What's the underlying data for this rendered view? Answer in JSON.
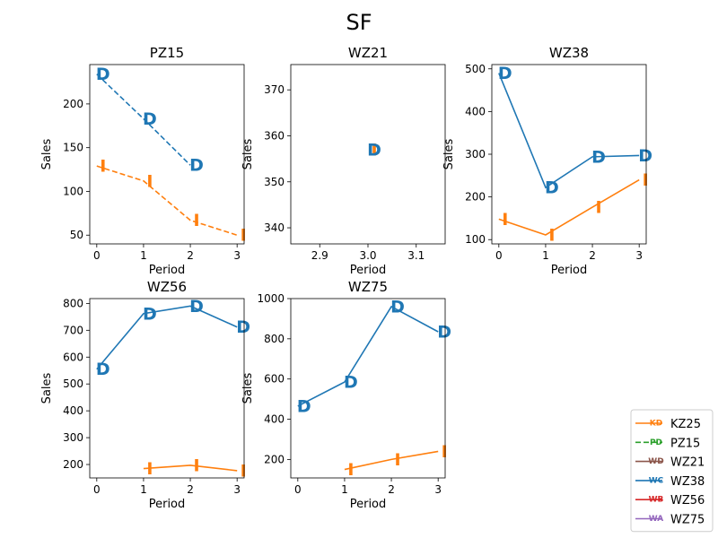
{
  "figure": {
    "title": "SF"
  },
  "colors": {
    "D": "#1f77b4",
    "I": "#ff7f0e"
  },
  "legend": {
    "placement": "bottom-right",
    "entries": [
      {
        "label": "KZ25",
        "color": "#ff7f0e",
        "dashed": false,
        "marker": "KD"
      },
      {
        "label": "PZ15",
        "color": "#2ca02c",
        "dashed": true,
        "marker": "PD"
      },
      {
        "label": "WZ21",
        "color": "#8c564b",
        "dashed": false,
        "marker": "WD"
      },
      {
        "label": "WZ38",
        "color": "#1f77b4",
        "dashed": false,
        "marker": "WC"
      },
      {
        "label": "WZ56",
        "color": "#d62728",
        "dashed": false,
        "marker": "WB"
      },
      {
        "label": "WZ75",
        "color": "#9467bd",
        "dashed": false,
        "marker": "WA"
      }
    ]
  },
  "chart_data": [
    {
      "type": "line",
      "title": "PZ15",
      "xlabel": "Period",
      "ylabel": "Sales",
      "xlim": [
        -0.15,
        3.15
      ],
      "ylim": [
        40,
        245
      ],
      "xticks": [
        0,
        1,
        2,
        3
      ],
      "xtick_labels": [
        "0",
        "1",
        "2",
        "3"
      ],
      "yticks": [
        50,
        100,
        150,
        200
      ],
      "ytick_labels": [
        "50",
        "100",
        "150",
        "200"
      ],
      "series": [
        {
          "key": "D",
          "dashed": true,
          "x": [
            0,
            1,
            2
          ],
          "y": [
            234,
            183,
            130
          ]
        },
        {
          "key": "I",
          "dashed": true,
          "x": [
            0,
            1,
            2,
            3
          ],
          "y": [
            129,
            112,
            67,
            50
          ]
        }
      ]
    },
    {
      "type": "line",
      "title": "WZ21",
      "xlabel": "Period",
      "ylabel": "Sales",
      "xlim": [
        2.84,
        3.16
      ],
      "ylim": [
        336.5,
        375.5
      ],
      "xticks": [
        2.9,
        3.0,
        3.1
      ],
      "xtick_labels": [
        "2.9",
        "3.0",
        "3.1"
      ],
      "yticks": [
        340,
        350,
        360,
        370
      ],
      "ytick_labels": [
        "340",
        "350",
        "360",
        "370"
      ],
      "series": [
        {
          "key": "I",
          "dashed": false,
          "x": [
            3
          ],
          "y": [
            357
          ]
        },
        {
          "key": "D",
          "dashed": false,
          "x": [
            3
          ],
          "y": [
            357
          ]
        }
      ]
    },
    {
      "type": "line",
      "title": "WZ38",
      "xlabel": "Period",
      "ylabel": "Sales",
      "xlim": [
        -0.15,
        3.15
      ],
      "ylim": [
        90,
        510
      ],
      "xticks": [
        0,
        1,
        2,
        3
      ],
      "xtick_labels": [
        "0",
        "1",
        "2",
        "3"
      ],
      "yticks": [
        100,
        200,
        300,
        400,
        500
      ],
      "ytick_labels": [
        "100",
        "200",
        "300",
        "400",
        "500"
      ],
      "series": [
        {
          "key": "D",
          "dashed": false,
          "x": [
            0,
            1,
            2,
            3
          ],
          "y": [
            490,
            222,
            294,
            297
          ]
        },
        {
          "key": "I",
          "dashed": false,
          "x": [
            0,
            1,
            2,
            3
          ],
          "y": [
            148,
            111,
            176,
            240
          ]
        }
      ]
    },
    {
      "type": "line",
      "title": "WZ56",
      "xlabel": "Period",
      "ylabel": "Sales",
      "xlim": [
        -0.15,
        3.15
      ],
      "ylim": [
        150,
        818
      ],
      "xticks": [
        0,
        1,
        2,
        3
      ],
      "xtick_labels": [
        "0",
        "1",
        "2",
        "3"
      ],
      "yticks": [
        200,
        300,
        400,
        500,
        600,
        700,
        800
      ],
      "ytick_labels": [
        "200",
        "300",
        "400",
        "500",
        "600",
        "700",
        "800"
      ],
      "series": [
        {
          "key": "D",
          "dashed": false,
          "x": [
            0,
            1,
            2,
            3
          ],
          "y": [
            555,
            762,
            790,
            712
          ]
        },
        {
          "key": "I",
          "dashed": false,
          "x": [
            1,
            2,
            3
          ],
          "y": [
            185,
            197,
            177
          ]
        }
      ]
    },
    {
      "type": "line",
      "title": "WZ75",
      "xlabel": "Period",
      "ylabel": "Sales",
      "xlim": [
        -0.15,
        3.15
      ],
      "ylim": [
        108,
        1000
      ],
      "xticks": [
        0,
        1,
        2,
        3
      ],
      "xtick_labels": [
        "0",
        "1",
        "2",
        "3"
      ],
      "yticks": [
        200,
        400,
        600,
        800,
        1000
      ],
      "ytick_labels": [
        "200",
        "400",
        "600",
        "800",
        "1000"
      ],
      "series": [
        {
          "key": "D",
          "dashed": false,
          "x": [
            0,
            1,
            2,
            3
          ],
          "y": [
            465,
            585,
            960,
            835
          ]
        },
        {
          "key": "I",
          "dashed": false,
          "x": [
            1,
            2,
            3
          ],
          "y": [
            150,
            200,
            240
          ]
        }
      ]
    }
  ]
}
